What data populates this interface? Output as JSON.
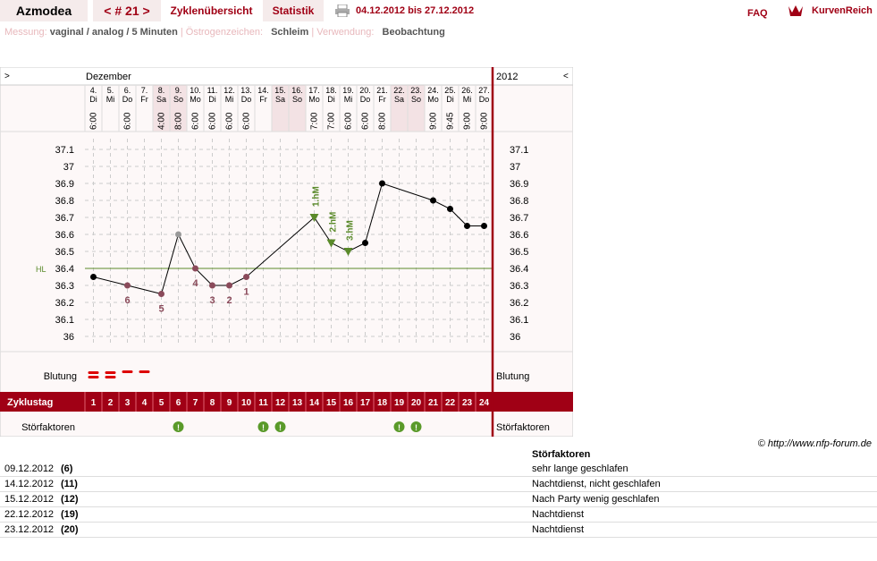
{
  "app": {
    "brand": "Azmodea",
    "cycle_nav": "< # 21 >",
    "tab_overview": "Zyklenübersicht",
    "tab_stats": "Statistik",
    "period": "04.12.2012 bis 27.12.2012",
    "faq": "FAQ",
    "logo_text": "KurvenReich"
  },
  "info": {
    "measure_label": "Messung:",
    "measure_value": "vaginal / analog / 5 Minuten",
    "estrogen_label": "Östrogenzeichen:",
    "estrogen_value": "Schleim",
    "usage_label": "Verwendung:",
    "usage_value": "Beobachtung"
  },
  "colors": {
    "accent": "#a00015",
    "weekend": "#f3e2e4",
    "green": "#5a8a2a",
    "dot": "#000",
    "excluded": "#8a4a5a",
    "grey": "#999"
  },
  "chart_data": {
    "type": "line",
    "header": {
      "left_arrow": ">",
      "right_arrow": "<",
      "month": "Dezember",
      "year": "2012"
    },
    "days": [
      {
        "d": "4.",
        "w": "Di",
        "t": "6:00"
      },
      {
        "d": "5.",
        "w": "Mi",
        "t": ""
      },
      {
        "d": "6.",
        "w": "Do",
        "t": "6:00"
      },
      {
        "d": "7.",
        "w": "Fr",
        "t": ""
      },
      {
        "d": "8.",
        "w": "Sa",
        "t": "4:00"
      },
      {
        "d": "9.",
        "w": "So",
        "t": "8:00"
      },
      {
        "d": "10.",
        "w": "Mo",
        "t": "6:00"
      },
      {
        "d": "11.",
        "w": "Di",
        "t": "6:00"
      },
      {
        "d": "12.",
        "w": "Mi",
        "t": "6:00"
      },
      {
        "d": "13.",
        "w": "Do",
        "t": "6:00"
      },
      {
        "d": "14.",
        "w": "Fr",
        "t": ""
      },
      {
        "d": "15.",
        "w": "Sa",
        "t": ""
      },
      {
        "d": "16.",
        "w": "So",
        "t": ""
      },
      {
        "d": "17.",
        "w": "Mo",
        "t": "7:00"
      },
      {
        "d": "18.",
        "w": "Di",
        "t": "7:00"
      },
      {
        "d": "19.",
        "w": "Mi",
        "t": "6:00"
      },
      {
        "d": "20.",
        "w": "Do",
        "t": "6:00"
      },
      {
        "d": "21.",
        "w": "Fr",
        "t": "8:00"
      },
      {
        "d": "22.",
        "w": "Sa",
        "t": ""
      },
      {
        "d": "23.",
        "w": "So",
        "t": ""
      },
      {
        "d": "24.",
        "w": "Mo",
        "t": "9:00"
      },
      {
        "d": "25.",
        "w": "Di",
        "t": "9:45"
      },
      {
        "d": "26.",
        "w": "Mi",
        "t": "9:00"
      },
      {
        "d": "27.",
        "w": "Do",
        "t": "9:00"
      }
    ],
    "weekend_idx": [
      4,
      5,
      11,
      12,
      18,
      19
    ],
    "ylim": [
      35.95,
      37.15
    ],
    "yticks": [
      "37.1",
      "37",
      "36.9",
      "36.8",
      "36.7",
      "36.6",
      "36.5",
      "36.4",
      "36.3",
      "36.2",
      "36.1",
      "36"
    ],
    "hl_label": "HL",
    "hl_value": 36.4,
    "temps": [
      36.35,
      null,
      36.3,
      null,
      36.25,
      36.6,
      36.4,
      36.3,
      36.3,
      36.35,
      null,
      null,
      null,
      36.7,
      36.55,
      36.5,
      36.55,
      36.9,
      null,
      null,
      36.8,
      36.75,
      36.65,
      36.65
    ],
    "styles": [
      "n",
      "",
      "x",
      "",
      "x",
      "g",
      "x",
      "x",
      "x",
      "x",
      "",
      "",
      "",
      "h",
      "h",
      "h",
      "n",
      "n",
      "",
      "",
      "n",
      "n",
      "n",
      "n"
    ],
    "low_labels": [
      {
        "i": 2,
        "t": "6"
      },
      {
        "i": 4,
        "t": "5"
      },
      {
        "i": 6,
        "t": "4"
      },
      {
        "i": 7,
        "t": "3"
      },
      {
        "i": 8,
        "t": "2"
      },
      {
        "i": 9,
        "t": "1"
      }
    ],
    "high_labels": [
      {
        "i": 13,
        "t": "1.hM"
      },
      {
        "i": 14,
        "t": "2.hM"
      },
      {
        "i": 15,
        "t": "3.hM"
      }
    ],
    "bleeding_label": "Blutung",
    "bleeding": [
      "heavy",
      "heavy",
      "medium",
      "medium"
    ],
    "cycle_label": "Zyklustag",
    "cycle_days": [
      "1",
      "2",
      "3",
      "4",
      "5",
      "6",
      "7",
      "8",
      "9",
      "10",
      "11",
      "12",
      "13",
      "14",
      "15",
      "16",
      "17",
      "18",
      "19",
      "20",
      "21",
      "22",
      "23",
      "24"
    ],
    "disturb_label": "Störfaktoren",
    "disturb_idx": [
      5,
      10,
      11,
      18,
      19
    ],
    "disturb_mark": "!"
  },
  "credit": "© http://www.nfp-forum.de",
  "stoer_title": "Störfaktoren",
  "stoer_rows": [
    {
      "date": "09.12.2012",
      "day": "(6)",
      "note": "sehr lange geschlafen"
    },
    {
      "date": "14.12.2012",
      "day": "(11)",
      "note": "Nachtdienst, nicht geschlafen"
    },
    {
      "date": "15.12.2012",
      "day": "(12)",
      "note": "Nach Party wenig geschlafen"
    },
    {
      "date": "22.12.2012",
      "day": "(19)",
      "note": "Nachtdienst"
    },
    {
      "date": "23.12.2012",
      "day": "(20)",
      "note": "Nachtdienst"
    }
  ]
}
